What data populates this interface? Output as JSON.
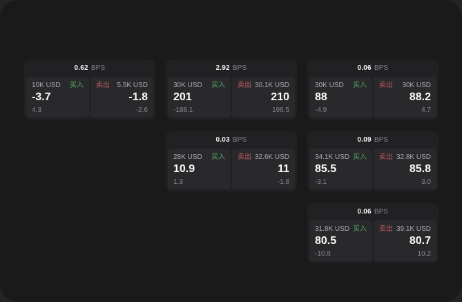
{
  "labels": {
    "bps_unit": "BPS",
    "buy": "买入",
    "sell": "卖出"
  },
  "colors": {
    "buy_accent": "#55a866",
    "sell_accent": "#c45a64",
    "window_bg": "#1a1a1b",
    "card_bg": "#212124",
    "panel_bg": "#29292c"
  },
  "cards": [
    {
      "bps": "0.62",
      "buy": {
        "amount": "10K USD",
        "value": "-3.7",
        "sub": "4.3"
      },
      "sell": {
        "amount": "5.5K USD",
        "value": "-1.8",
        "sub": "-2.6"
      }
    },
    {
      "bps": "2.92",
      "buy": {
        "amount": "30K USD",
        "value": "201",
        "sub": "-188.1"
      },
      "sell": {
        "amount": "30.1K USD",
        "value": "210",
        "sub": "196.5"
      }
    },
    {
      "bps": "0.06",
      "buy": {
        "amount": "30K USD",
        "value": "88",
        "sub": "-4.9"
      },
      "sell": {
        "amount": "30K USD",
        "value": "88.2",
        "sub": "4.7"
      }
    },
    {
      "bps": "0.03",
      "buy": {
        "amount": "28K USD",
        "value": "10.9",
        "sub": "1.3"
      },
      "sell": {
        "amount": "32.6K USD",
        "value": "11",
        "sub": "-1.8"
      }
    },
    {
      "bps": "0.09",
      "buy": {
        "amount": "34.1K USD",
        "value": "85.5",
        "sub": "-3.1"
      },
      "sell": {
        "amount": "32.8K USD",
        "value": "85.8",
        "sub": "3.0"
      }
    },
    {
      "bps": "0.06",
      "buy": {
        "amount": "31.8K USD",
        "value": "80.5",
        "sub": "-10.8"
      },
      "sell": {
        "amount": "39.1K USD",
        "value": "80.7",
        "sub": "10.2"
      }
    }
  ]
}
